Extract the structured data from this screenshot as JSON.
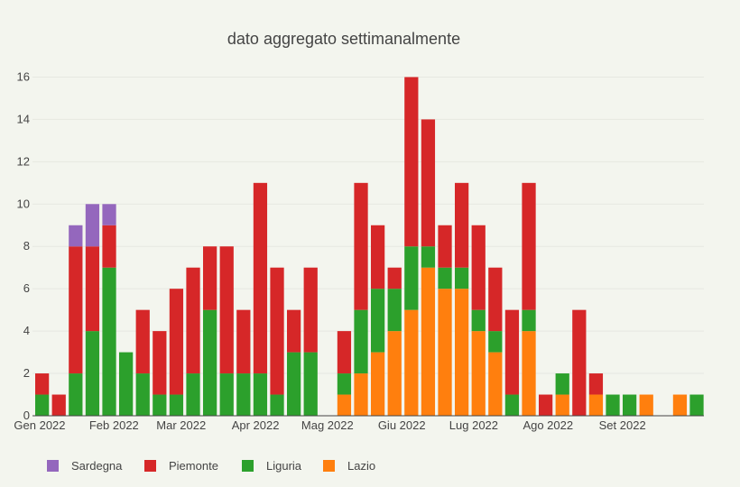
{
  "chart_data": {
    "type": "bar",
    "stacked": true,
    "title": "dato aggregato settimanalmente",
    "xlabel": "",
    "ylabel": "",
    "ylim": [
      0,
      17
    ],
    "yticks": [
      0,
      2,
      4,
      6,
      8,
      10,
      12,
      14,
      16
    ],
    "x_axis_type": "date",
    "xticks": [
      {
        "date": "2022-01-01",
        "label": "Gen 2022"
      },
      {
        "date": "2022-02-01",
        "label": "Feb 2022"
      },
      {
        "date": "2022-03-01",
        "label": "Mar 2022"
      },
      {
        "date": "2022-04-01",
        "label": "Apr 2022"
      },
      {
        "date": "2022-05-01",
        "label": "Mag 2022"
      },
      {
        "date": "2022-06-01",
        "label": "Giu 2022"
      },
      {
        "date": "2022-07-01",
        "label": "Lug 2022"
      },
      {
        "date": "2022-08-01",
        "label": "Ago 2022"
      },
      {
        "date": "2022-09-01",
        "label": "Set 2022"
      }
    ],
    "x_range": [
      "2021-12-29",
      "2022-10-05"
    ],
    "grid": true,
    "legend_position": "bottom-left",
    "x": [
      "2022-01-02",
      "2022-01-09",
      "2022-01-16",
      "2022-01-23",
      "2022-01-30",
      "2022-02-06",
      "2022-02-13",
      "2022-02-20",
      "2022-02-27",
      "2022-03-06",
      "2022-03-13",
      "2022-03-20",
      "2022-03-27",
      "2022-04-03",
      "2022-04-10",
      "2022-04-17",
      "2022-04-24",
      "2022-05-01",
      "2022-05-08",
      "2022-05-15",
      "2022-05-22",
      "2022-05-29",
      "2022-06-05",
      "2022-06-12",
      "2022-06-19",
      "2022-06-26",
      "2022-07-03",
      "2022-07-10",
      "2022-07-17",
      "2022-07-24",
      "2022-07-31",
      "2022-08-07",
      "2022-08-14",
      "2022-08-21",
      "2022-08-28",
      "2022-09-04",
      "2022-09-11",
      "2022-09-18",
      "2022-09-25",
      "2022-10-02"
    ],
    "series": [
      {
        "name": "Lazio",
        "color": "#ff7f0e",
        "values": [
          0,
          0,
          0,
          0,
          0,
          0,
          0,
          0,
          0,
          0,
          0,
          0,
          0,
          0,
          0,
          0,
          0,
          0,
          1,
          2,
          3,
          4,
          5,
          7,
          6,
          6,
          4,
          3,
          0,
          4,
          0,
          1,
          0,
          1,
          0,
          0,
          1,
          0,
          1,
          0
        ]
      },
      {
        "name": "Liguria",
        "color": "#2ca02c",
        "values": [
          1,
          0,
          2,
          4,
          7,
          3,
          2,
          1,
          1,
          2,
          5,
          2,
          2,
          2,
          1,
          3,
          3,
          0,
          1,
          3,
          3,
          2,
          3,
          1,
          1,
          1,
          1,
          1,
          1,
          1,
          0,
          1,
          0,
          0,
          1,
          1,
          0,
          0,
          0,
          1
        ]
      },
      {
        "name": "Piemonte",
        "color": "#d62728",
        "values": [
          1,
          1,
          6,
          4,
          2,
          0,
          3,
          3,
          5,
          5,
          3,
          6,
          3,
          9,
          6,
          2,
          4,
          0,
          2,
          6,
          3,
          1,
          8,
          6,
          2,
          4,
          4,
          3,
          4,
          6,
          1,
          0,
          5,
          1,
          0,
          0,
          0,
          0,
          0,
          0
        ]
      },
      {
        "name": "Sardegna",
        "color": "#9467bd",
        "values": [
          0,
          0,
          1,
          2,
          1,
          0,
          0,
          0,
          0,
          0,
          0,
          0,
          0,
          0,
          0,
          0,
          0,
          0,
          0,
          0,
          0,
          0,
          0,
          0,
          0,
          0,
          0,
          0,
          0,
          0,
          0,
          0,
          0,
          0,
          0,
          0,
          0,
          0,
          0,
          0
        ]
      }
    ],
    "legend_order": [
      "Sardegna",
      "Piemonte",
      "Liguria",
      "Lazio"
    ]
  }
}
